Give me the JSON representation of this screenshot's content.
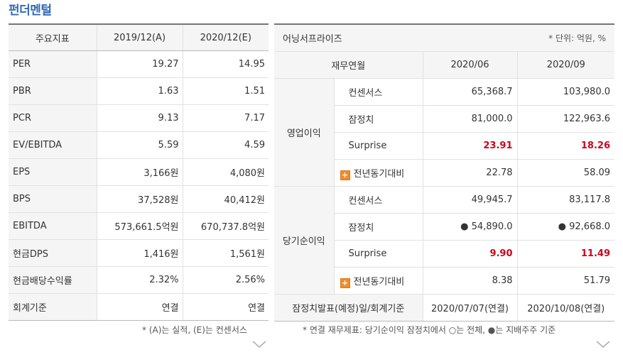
{
  "title": "펀더멘털",
  "fundamentals": {
    "headers": [
      "주요지표",
      "2019/12(A)",
      "2020/12(E)"
    ],
    "rows": [
      {
        "label": "PER",
        "a": "19.27",
        "e": "14.95"
      },
      {
        "label": "PBR",
        "a": "1.63",
        "e": "1.51"
      },
      {
        "label": "PCR",
        "a": "9.13",
        "e": "7.17"
      },
      {
        "label": "EV/EBITDA",
        "a": "5.59",
        "e": "4.59"
      },
      {
        "label": "EPS",
        "a": "3,166원",
        "e": "4,080원"
      },
      {
        "label": "BPS",
        "a": "37,528원",
        "e": "40,412원"
      },
      {
        "label": "EBITDA",
        "a": "573,661.5억원",
        "e": "670,737.8억원"
      },
      {
        "label": "현금DPS",
        "a": "1,416원",
        "e": "1,561원"
      },
      {
        "label": "현금배당수익률",
        "a": "2.32%",
        "e": "2.56%"
      },
      {
        "label": "회계기준",
        "a": "연결",
        "e": "연결"
      }
    ],
    "note": "* (A)는 실적, (E)는 컨센서스"
  },
  "earnings": {
    "caption": "어닝서프라이즈",
    "unit": "* 단위: 억원, %",
    "headers": [
      "재무연월",
      "2020/06",
      "2020/09"
    ],
    "groups": [
      {
        "label": "영업이익",
        "rows": [
          {
            "label": "컨센서스",
            "v1": "65,368.7",
            "v2": "103,980.0"
          },
          {
            "label": "잠정치",
            "v1": "81,000.0",
            "v2": "122,963.6"
          },
          {
            "label": "Surprise",
            "v1": "23.91",
            "v2": "18.26"
          },
          {
            "label": "전년동기대비",
            "v1": "22.78",
            "v2": "58.09"
          }
        ]
      },
      {
        "label": "당기순이익",
        "rows": [
          {
            "label": "컨센서스",
            "v1": "49,945.7",
            "v2": "83,117.8"
          },
          {
            "label": "잠정치",
            "v1": "● 54,890.0",
            "v2": "● 92,668.0"
          },
          {
            "label": "Surprise",
            "v1": "9.90",
            "v2": "11.49"
          },
          {
            "label": "전년동기대비",
            "v1": "8.38",
            "v2": "51.79"
          }
        ]
      }
    ],
    "footer": {
      "label": "잠정치발표(예정)일/회계기준",
      "v1": "2020/07/07(연결)",
      "v2": "2020/10/08(연결)"
    },
    "note": "* 연결 재무제표: 당기순이익 잠정치에서 ○는 전체, ●는 지배주주 기준"
  },
  "icons": {
    "plus": "+",
    "chevron": "chevron-down-icon"
  },
  "colors": {
    "title": "#2f6ab4",
    "surprise": "#d0021b",
    "plus": "#f28c28"
  }
}
